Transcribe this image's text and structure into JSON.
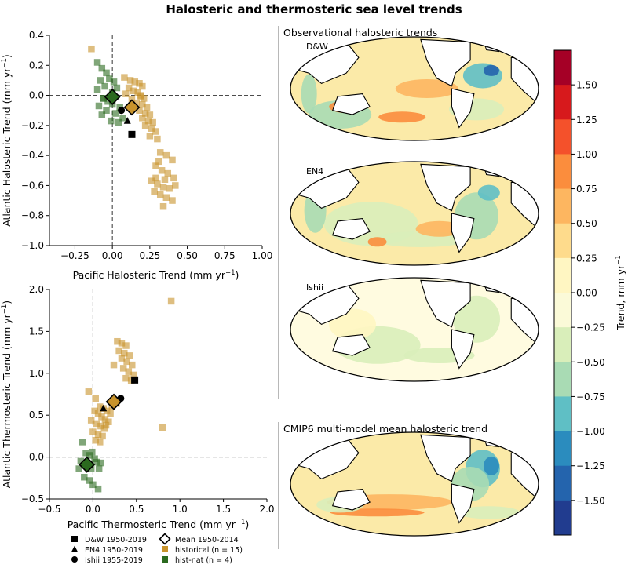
{
  "title": "Halosteric and thermosteric sea level trends",
  "chart_data": [
    {
      "type": "scatter",
      "id": "halosteric",
      "xlabel": "Pacific Halosteric Trend (mm yr",
      "ylabel": "Atlantic Halosteric Trend (mm yr",
      "xlim": [
        -0.42,
        1.0
      ],
      "ylim": [
        -1.0,
        0.4
      ],
      "xticks": [
        -0.25,
        0.0,
        0.25,
        0.5,
        0.75,
        1.0
      ],
      "xticklabels": [
        "−0.25",
        "0.00",
        "0.25",
        "0.50",
        "0.75",
        "1.00"
      ],
      "yticks": [
        0.4,
        0.2,
        0.0,
        -0.2,
        -0.4,
        -0.6,
        -0.8,
        -1.0
      ],
      "yticklabels": [
        "0.4",
        "0.2",
        "0.0",
        "−0.2",
        "−0.4",
        "−0.6",
        "−0.8",
        "−1.0"
      ],
      "zero_lines": true,
      "series": [
        {
          "name": "historical (n = 15)",
          "color": "#c8932b",
          "marker": "square",
          "points": [
            [
              -0.14,
              0.31
            ],
            [
              0.08,
              0.12
            ],
            [
              0.12,
              0.1
            ],
            [
              0.15,
              0.09
            ],
            [
              0.18,
              0.08
            ],
            [
              0.2,
              0.06
            ],
            [
              0.11,
              0.05
            ],
            [
              0.14,
              0.03
            ],
            [
              0.17,
              0.02
            ],
            [
              0.19,
              0.0
            ],
            [
              0.21,
              -0.02
            ],
            [
              0.09,
              0.01
            ],
            [
              0.13,
              -0.03
            ],
            [
              0.16,
              -0.05
            ],
            [
              0.2,
              -0.06
            ],
            [
              0.23,
              -0.08
            ],
            [
              0.18,
              -0.1
            ],
            [
              0.22,
              -0.12
            ],
            [
              0.25,
              -0.13
            ],
            [
              0.2,
              -0.15
            ],
            [
              0.24,
              -0.17
            ],
            [
              0.27,
              -0.18
            ],
            [
              0.22,
              -0.2
            ],
            [
              0.26,
              -0.22
            ],
            [
              0.29,
              -0.24
            ],
            [
              0.25,
              -0.27
            ],
            [
              0.3,
              -0.29
            ],
            [
              0.19,
              -0.01
            ],
            [
              0.32,
              -0.38
            ],
            [
              0.36,
              -0.4
            ],
            [
              0.4,
              -0.43
            ],
            [
              0.29,
              -0.47
            ],
            [
              0.33,
              -0.5
            ],
            [
              0.37,
              -0.52
            ],
            [
              0.41,
              -0.55
            ],
            [
              0.26,
              -0.57
            ],
            [
              0.3,
              -0.59
            ],
            [
              0.34,
              -0.61
            ],
            [
              0.38,
              -0.62
            ],
            [
              0.42,
              -0.6
            ],
            [
              0.28,
              -0.64
            ],
            [
              0.32,
              -0.66
            ],
            [
              0.36,
              -0.68
            ],
            [
              0.4,
              -0.7
            ],
            [
              0.34,
              -0.74
            ],
            [
              0.29,
              -0.55
            ],
            [
              0.35,
              -0.56
            ],
            [
              0.31,
              -0.44
            ]
          ]
        },
        {
          "name": "hist-nat (n = 4)",
          "color": "#2b6a1f",
          "marker": "square",
          "points": [
            [
              -0.1,
              0.22
            ],
            [
              -0.07,
              0.18
            ],
            [
              -0.04,
              0.15
            ],
            [
              -0.02,
              0.11
            ],
            [
              0.01,
              0.09
            ],
            [
              -0.08,
              0.1
            ],
            [
              -0.05,
              0.06
            ],
            [
              0.03,
              0.05
            ],
            [
              -0.1,
              0.04
            ],
            [
              -0.06,
              -0.02
            ],
            [
              -0.03,
              -0.04
            ],
            [
              0.0,
              -0.06
            ],
            [
              -0.09,
              -0.07
            ],
            [
              0.05,
              -0.08
            ],
            [
              -0.04,
              -0.1
            ],
            [
              0.02,
              -0.12
            ],
            [
              -0.07,
              -0.13
            ],
            [
              0.07,
              -0.15
            ],
            [
              -0.01,
              -0.17
            ],
            [
              0.04,
              -0.18
            ],
            [
              -0.06,
              -0.02
            ],
            [
              0.0,
              0.02
            ]
          ]
        },
        {
          "name": "D&W 1950-2019",
          "color": "#000000",
          "marker": "square",
          "size": "large",
          "points": [
            [
              0.13,
              -0.26
            ]
          ]
        },
        {
          "name": "EN4 1950-2019",
          "color": "#000000",
          "marker": "triangle",
          "size": "large",
          "points": [
            [
              0.1,
              -0.17
            ]
          ]
        },
        {
          "name": "Ishii 1955-2019",
          "color": "#000000",
          "marker": "circle",
          "size": "large",
          "points": [
            [
              0.06,
              -0.1
            ]
          ]
        },
        {
          "name": "Mean 1950-2014",
          "color": "#2b6a1f",
          "marker": "diamond",
          "size": "large",
          "points": [
            [
              0.0,
              -0.01
            ]
          ]
        },
        {
          "name": "Mean 1950-2014",
          "color": "#c8932b",
          "marker": "diamond",
          "size": "large",
          "points": [
            [
              0.13,
              -0.08
            ]
          ]
        }
      ]
    },
    {
      "type": "scatter",
      "id": "thermosteric",
      "xlabel": "Pacific Thermosteric Trend (mm yr",
      "ylabel": "Atlantic Thermosteric Trend (mm yr",
      "xlim": [
        -0.5,
        2.0
      ],
      "ylim": [
        -0.5,
        2.0
      ],
      "xticks": [
        -0.5,
        0.0,
        0.5,
        1.0,
        1.5,
        2.0
      ],
      "xticklabels": [
        "−0.5",
        "0.0",
        "0.5",
        "1.0",
        "1.5",
        "2.0"
      ],
      "yticks": [
        2.0,
        1.5,
        1.0,
        0.5,
        0.0,
        -0.5
      ],
      "yticklabels": [
        "2.0",
        "1.5",
        "1.0",
        "0.5",
        "0.0",
        "−0.5"
      ],
      "zero_lines": true,
      "series": [
        {
          "name": "historical (n = 15)",
          "color": "#c8932b",
          "marker": "square",
          "points": [
            [
              0.9,
              1.86
            ],
            [
              0.8,
              0.35
            ],
            [
              0.28,
              1.38
            ],
            [
              0.33,
              1.36
            ],
            [
              0.38,
              1.33
            ],
            [
              0.3,
              1.27
            ],
            [
              0.36,
              1.24
            ],
            [
              0.42,
              1.21
            ],
            [
              0.33,
              1.18
            ],
            [
              0.39,
              1.14
            ],
            [
              0.45,
              1.1
            ],
            [
              0.35,
              1.06
            ],
            [
              0.41,
              1.02
            ],
            [
              0.47,
              0.98
            ],
            [
              0.38,
              0.94
            ],
            [
              0.44,
              0.91
            ],
            [
              0.24,
              1.1
            ],
            [
              -0.05,
              0.78
            ],
            [
              0.03,
              0.7
            ],
            [
              0.08,
              0.6
            ],
            [
              0.12,
              0.58
            ],
            [
              0.16,
              0.55
            ],
            [
              0.2,
              0.52
            ],
            [
              0.02,
              0.55
            ],
            [
              0.06,
              0.52
            ],
            [
              0.1,
              0.48
            ],
            [
              0.14,
              0.45
            ],
            [
              0.18,
              0.42
            ],
            [
              -0.02,
              0.44
            ],
            [
              0.04,
              0.4
            ],
            [
              0.09,
              0.37
            ],
            [
              0.13,
              0.34
            ],
            [
              0.0,
              0.3
            ],
            [
              0.06,
              0.27
            ],
            [
              0.11,
              0.25
            ],
            [
              0.03,
              0.2
            ],
            [
              0.08,
              0.18
            ],
            [
              0.15,
              0.38
            ],
            [
              0.22,
              0.6
            ],
            [
              0.27,
              0.64
            ]
          ]
        },
        {
          "name": "hist-nat (n = 4)",
          "color": "#2b6a1f",
          "marker": "square",
          "points": [
            [
              -0.12,
              0.18
            ],
            [
              -0.08,
              0.05
            ],
            [
              -0.04,
              0.02
            ],
            [
              0.02,
              -0.02
            ],
            [
              -0.14,
              -0.05
            ],
            [
              -0.06,
              -0.1
            ],
            [
              -0.02,
              -0.14
            ],
            [
              0.04,
              -0.06
            ],
            [
              0.07,
              -0.14
            ],
            [
              -0.1,
              -0.24
            ],
            [
              -0.04,
              -0.28
            ],
            [
              0.0,
              -0.33
            ],
            [
              0.06,
              -0.38
            ],
            [
              -0.16,
              -0.14
            ],
            [
              0.09,
              -0.07
            ],
            [
              -0.01,
              0.06
            ]
          ]
        },
        {
          "name": "D&W 1950-2019",
          "color": "#000000",
          "marker": "square",
          "size": "large",
          "points": [
            [
              0.48,
              0.92
            ]
          ]
        },
        {
          "name": "EN4 1950-2019",
          "color": "#000000",
          "marker": "triangle",
          "size": "large",
          "points": [
            [
              0.12,
              0.58
            ]
          ]
        },
        {
          "name": "Ishii 1955-2019",
          "color": "#000000",
          "marker": "circle",
          "size": "large",
          "points": [
            [
              0.32,
              0.7
            ]
          ]
        },
        {
          "name": "Mean 1950-2014",
          "color": "#2b6a1f",
          "marker": "diamond",
          "size": "large",
          "points": [
            [
              -0.07,
              -0.09
            ]
          ]
        },
        {
          "name": "Mean 1950-2014",
          "color": "#c8932b",
          "marker": "diamond",
          "size": "large",
          "points": [
            [
              0.24,
              0.66
            ]
          ]
        }
      ]
    },
    {
      "type": "heatmap",
      "id": "maps",
      "group_title": "Observational halosteric trends",
      "model_title": "CMIP6 multi-model mean halosteric trend",
      "panels": [
        "D&W",
        "EN4",
        "Ishii",
        ""
      ],
      "colorbar": {
        "label": "Trend, mm yr",
        "ticks": [
          "1.50",
          "1.25",
          "1.00",
          "0.75",
          "0.50",
          "0.25",
          "0.00",
          "−0.25",
          "−0.50",
          "−0.75",
          "−1.00",
          "−1.25",
          "−1.50"
        ],
        "colors": [
          "#a50026",
          "#d7191c",
          "#f4512b",
          "#fb8d3d",
          "#fdb660",
          "#fedb8c",
          "#fff6c2",
          "#fbfad8",
          "#d9eeba",
          "#a9dbb4",
          "#5fbfc5",
          "#2b8cbe",
          "#2464ad",
          "#213c8f"
        ]
      }
    }
  ],
  "legend": [
    {
      "marker": "square",
      "color": "#000000",
      "label": "D&W 1950-2019"
    },
    {
      "marker": "diamond-open",
      "color": "#000000",
      "label": "Mean 1950-2014"
    },
    {
      "marker": "triangle",
      "color": "#000000",
      "label": "EN4 1950-2019"
    },
    {
      "marker": "square",
      "color": "#c8932b",
      "label": "historical (n = 15)"
    },
    {
      "marker": "circle",
      "color": "#000000",
      "label": "Ishii 1955-2019"
    },
    {
      "marker": "square",
      "color": "#2b6a1f",
      "label": "hist-nat (n = 4)"
    }
  ]
}
